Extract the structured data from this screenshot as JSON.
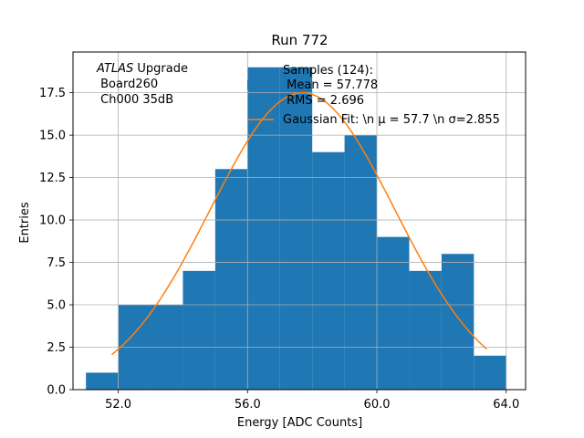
{
  "chart_data": {
    "type": "bar",
    "title": "Run 772",
    "xlabel": "Energy [ADC Counts]",
    "ylabel": "Entries",
    "xlim": [
      50.6,
      64.6
    ],
    "ylim": [
      0,
      19.9
    ],
    "grid": true,
    "xticks": [
      52,
      56,
      60,
      64
    ],
    "xtick_labels": [
      "52.0",
      "56.0",
      "60.0",
      "64.0"
    ],
    "yticks": [
      0,
      2.5,
      5,
      7.5,
      10,
      12.5,
      15,
      17.5
    ],
    "ytick_labels": [
      "0.0",
      "2.5",
      "5.0",
      "7.5",
      "10.0",
      "12.5",
      "15.0",
      "17.5"
    ],
    "bin_edges": [
      51,
      52,
      53,
      54,
      55,
      56,
      57,
      58,
      59,
      60,
      61,
      62,
      63,
      64
    ],
    "values": [
      1,
      5,
      5,
      7,
      13,
      19,
      19,
      14,
      15,
      9,
      7,
      8,
      2
    ],
    "bar_color": "#1f77b4",
    "fit_color": "#ff7f0e",
    "fit": {
      "amplitude": 17.5,
      "mean": 57.7,
      "sigma": 2.855,
      "x_range": [
        51.8,
        63.4
      ]
    },
    "legend_position": "top-right",
    "legend": {
      "samples": "Samples (124):",
      "mean": " Mean = 57.778",
      "rms": " RMS = 2.696",
      "fit": "Gaussian Fit: \\n μ = 57.7 \\n σ=2.855"
    },
    "annotation": {
      "atlas": "ATLAS",
      "upgrade": " Upgrade",
      "board": " Board260",
      "channel": " Ch000 35dB"
    }
  }
}
